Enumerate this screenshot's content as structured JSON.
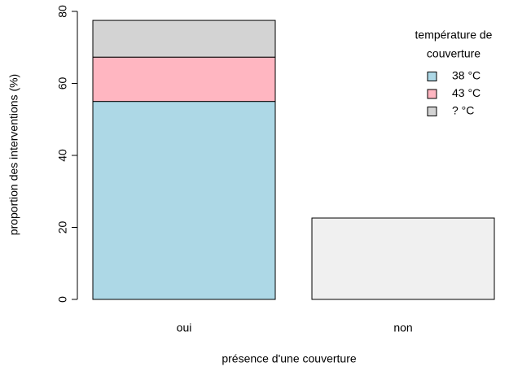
{
  "chart_data": {
    "type": "stacked_bar",
    "categories": [
      "oui",
      "non"
    ],
    "series": [
      {
        "name": "38 °C",
        "color": "#add8e6",
        "values": [
          55,
          null
        ]
      },
      {
        "name": "43 °C",
        "color": "#ffb6c1",
        "values": [
          12.3,
          null
        ]
      },
      {
        "name": "? °C",
        "color": "#d3d3d3",
        "values": [
          10.2,
          null
        ]
      },
      {
        "color": "#f0f0f0",
        "values": [
          null,
          22.6
        ]
      }
    ],
    "ylim": [
      0,
      80
    ],
    "yticks": [
      0,
      20,
      40,
      60,
      80
    ],
    "y_label": "proportion des interventions (%)",
    "x_label": "présence d'une couverture",
    "legend_title": [
      "température de",
      "couverture"
    ],
    "legend_position": "top-right"
  }
}
